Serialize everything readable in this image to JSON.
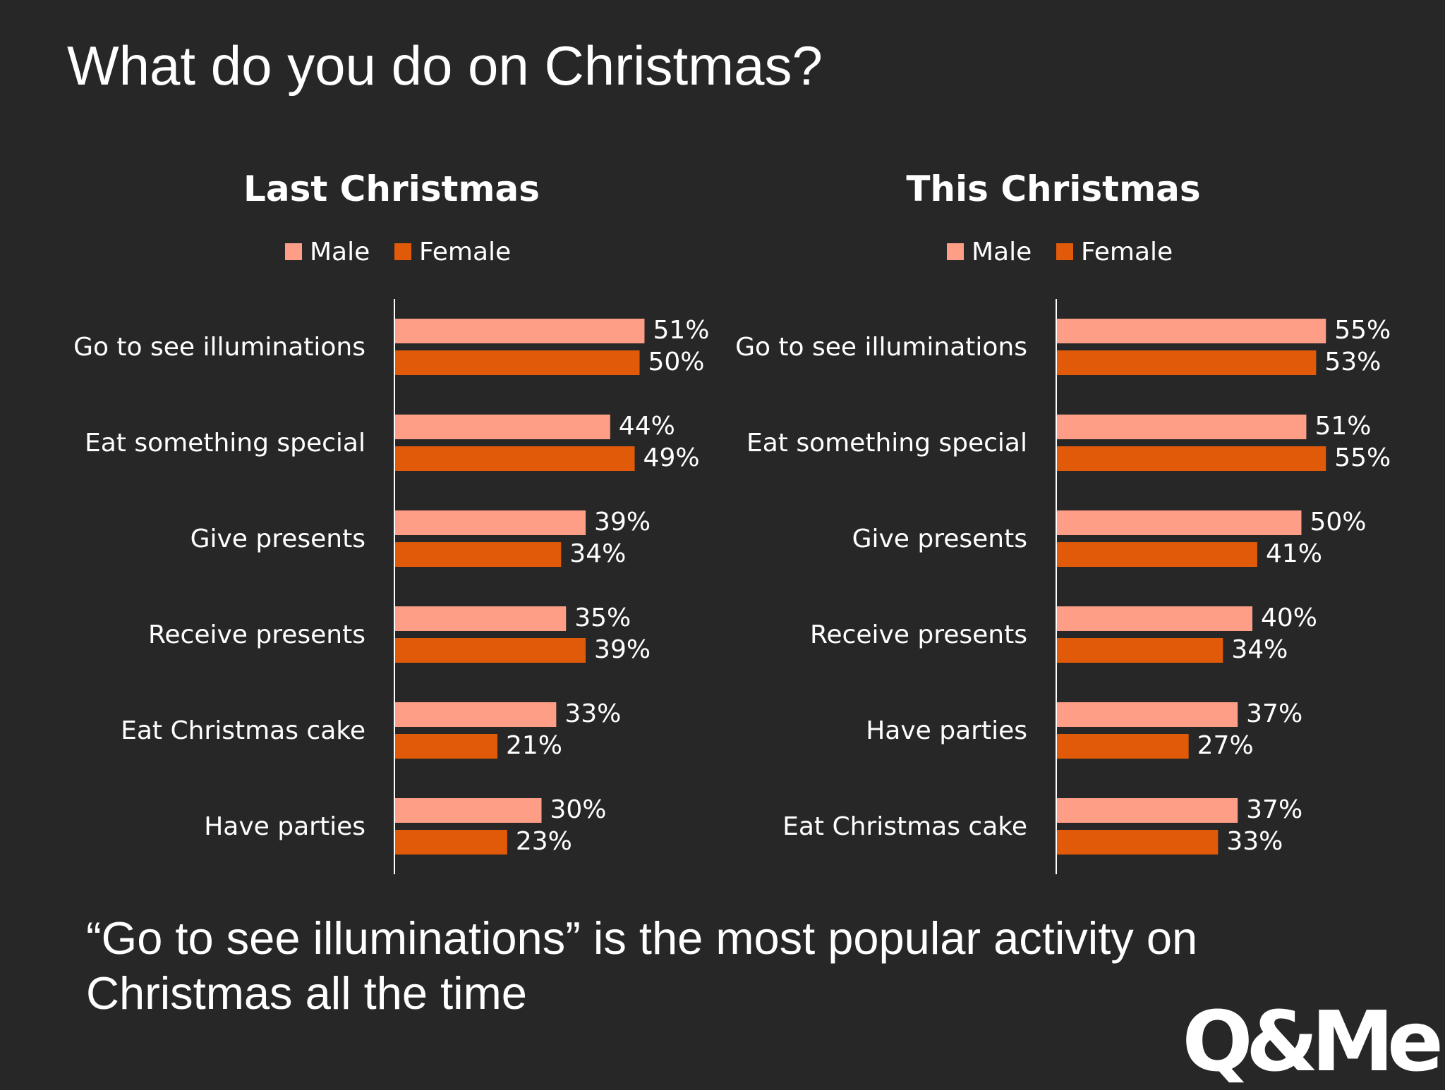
{
  "title": "What do you do on Christmas?",
  "footnote": "“Go to see illuminations” is the most popular activity on Christmas all the time",
  "logo_text": "Q&Me",
  "colors": {
    "male": "#FF9E86",
    "female": "#E05A0A",
    "background": "#272727",
    "text": "#FFFFFF"
  },
  "chart_data": [
    {
      "type": "bar",
      "orientation": "horizontal",
      "title": "Last Christmas",
      "categories": [
        "Go to see illuminations",
        "Eat something special",
        "Give presents",
        "Receive presents",
        "Eat Christmas cake",
        "Have parties"
      ],
      "series": [
        {
          "name": "Male",
          "values": [
            51,
            44,
            39,
            35,
            33,
            30
          ]
        },
        {
          "name": "Female",
          "values": [
            50,
            49,
            34,
            39,
            21,
            23
          ]
        }
      ],
      "value_suffix": "%",
      "legend": "top",
      "grid": false
    },
    {
      "type": "bar",
      "orientation": "horizontal",
      "title": "This Christmas",
      "categories": [
        "Go to see illuminations",
        "Eat something special",
        "Give presents",
        "Receive presents",
        "Have parties",
        "Eat Christmas cake"
      ],
      "series": [
        {
          "name": "Male",
          "values": [
            55,
            51,
            50,
            40,
            37,
            37
          ]
        },
        {
          "name": "Female",
          "values": [
            53,
            55,
            41,
            34,
            27,
            33
          ]
        }
      ],
      "value_suffix": "%",
      "legend": "top",
      "grid": false
    }
  ]
}
